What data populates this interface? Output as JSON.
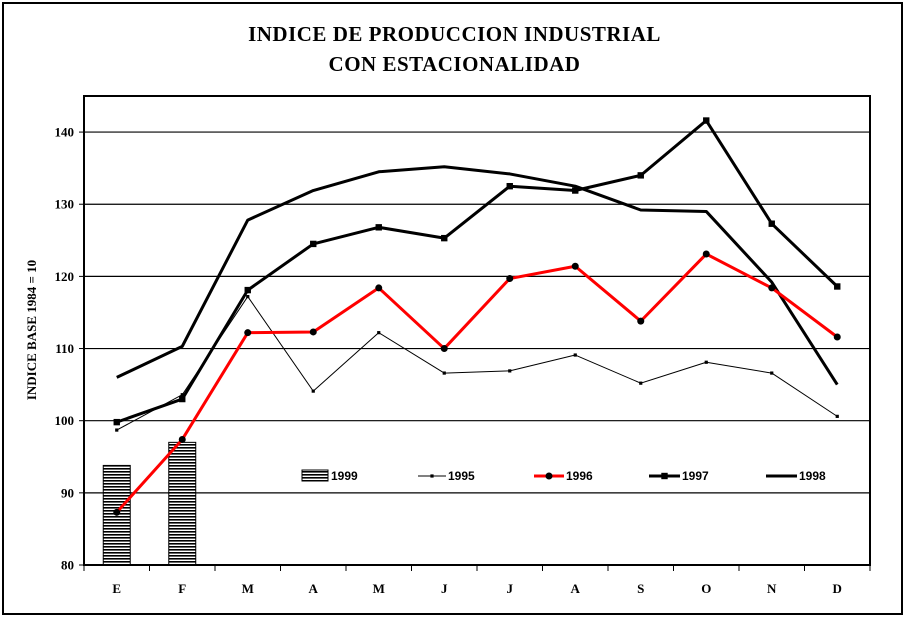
{
  "chart_data": {
    "type": "line",
    "title_line1": "INDICE DE PRODUCCION INDUSTRIAL",
    "title_line2": "CON ESTACIONALIDAD",
    "ylabel": "INDICE BASE 1984 = 10",
    "xlabel": "",
    "ylim": [
      80,
      145
    ],
    "yticks": [
      80,
      90,
      100,
      110,
      120,
      130,
      140
    ],
    "categories": [
      "E",
      "F",
      "M",
      "A",
      "M",
      "J",
      "J",
      "A",
      "S",
      "O",
      "N",
      "D"
    ],
    "grid": true,
    "legend_position": "inside-bottom",
    "bars": {
      "name": "1999",
      "values": [
        93.8,
        97.0
      ]
    },
    "series": [
      {
        "name": "1995",
        "color": "#000000",
        "marker": "small-dot",
        "values": [
          98.7,
          103.6,
          117.2,
          104.1,
          112.2,
          106.6,
          106.9,
          109.1,
          105.2,
          108.1,
          106.6,
          100.6
        ]
      },
      {
        "name": "1996",
        "color": "#ff0000",
        "marker": "circle",
        "values": [
          87.3,
          97.4,
          112.2,
          112.3,
          118.4,
          110.0,
          119.7,
          121.4,
          113.8,
          123.1,
          118.4,
          111.6
        ]
      },
      {
        "name": "1997",
        "color": "#000000",
        "marker": "square",
        "values": [
          99.8,
          103.0,
          118.1,
          124.5,
          126.8,
          125.3,
          132.5,
          131.9,
          134.0,
          141.6,
          127.3,
          118.6
        ]
      },
      {
        "name": "1998",
        "color": "#000000",
        "marker": "none",
        "values": [
          106.0,
          110.3,
          127.8,
          131.9,
          134.5,
          135.2,
          134.2,
          132.5,
          129.2,
          129.0,
          119.2,
          105.0
        ]
      }
    ]
  }
}
